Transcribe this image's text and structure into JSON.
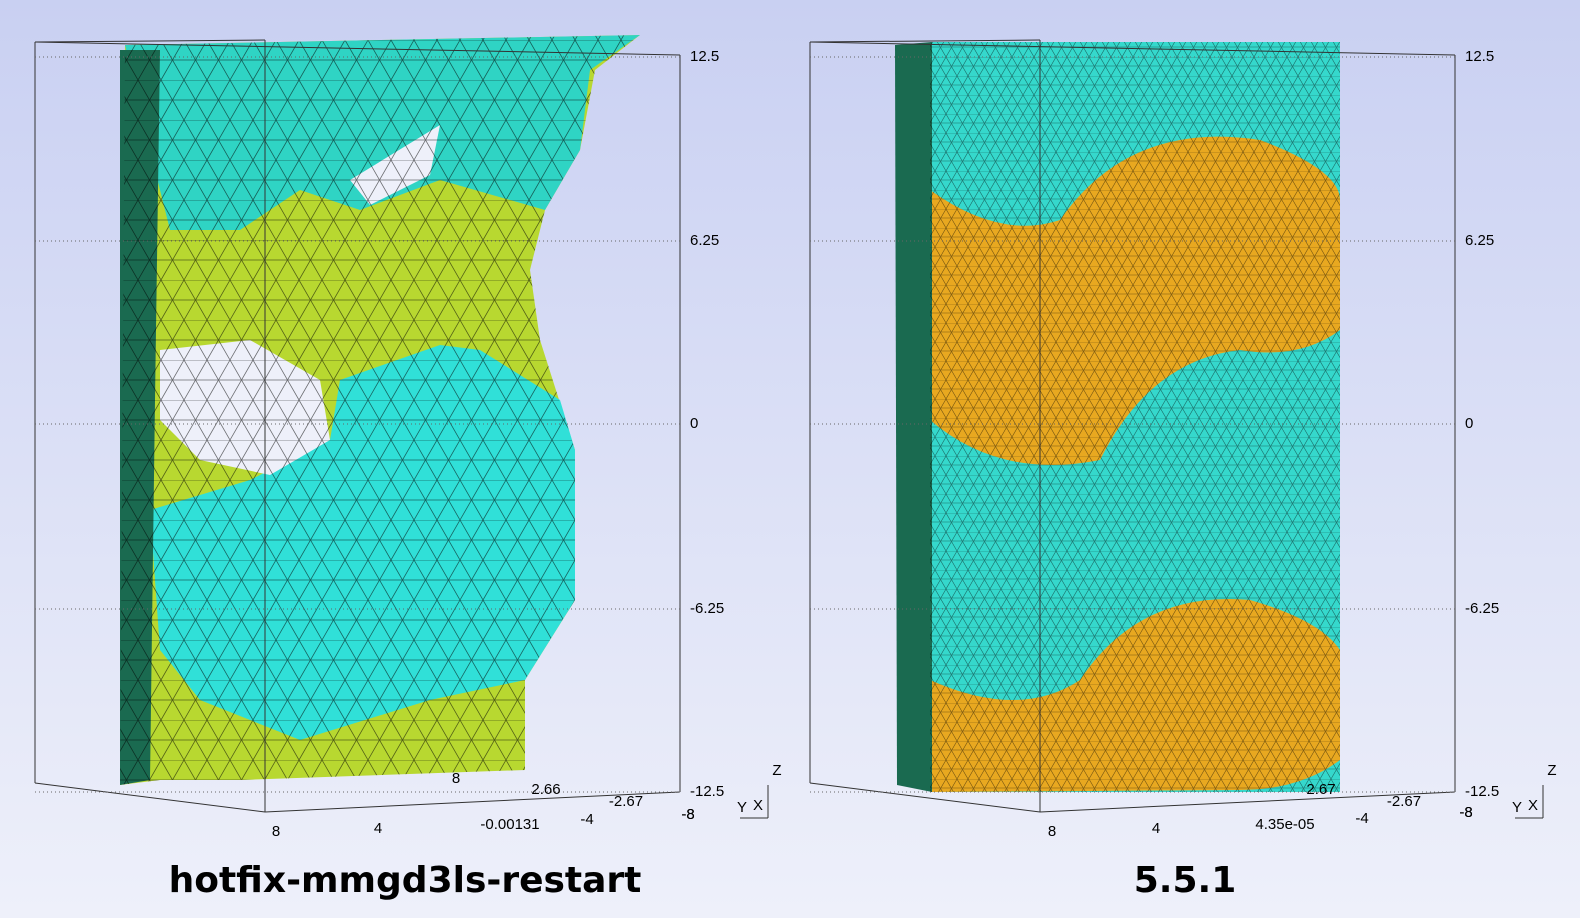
{
  "panels": [
    {
      "caption": "hotfix-mmgd3ls-restart",
      "z_ticks": [
        "12.5",
        "6.25",
        "0",
        "-6.25",
        "-12.5"
      ],
      "x_ticks": [
        "8",
        "4",
        "-0.00131",
        "-4",
        "-8"
      ],
      "y_ticks": [
        "8",
        "2.66",
        "-2.67",
        "-8"
      ],
      "axis_labels": [
        "Z",
        "Y",
        "X"
      ]
    },
    {
      "caption": "5.5.1",
      "z_ticks": [
        "12.5",
        "6.25",
        "0",
        "-6.25",
        "-12.5"
      ],
      "x_ticks": [
        "8",
        "4",
        "4.35e-05",
        "-4",
        "-8"
      ],
      "y_ticks": [
        "2.67",
        "-2.67",
        "-8"
      ],
      "axis_labels": [
        "Z",
        "Y",
        "X"
      ]
    }
  ]
}
